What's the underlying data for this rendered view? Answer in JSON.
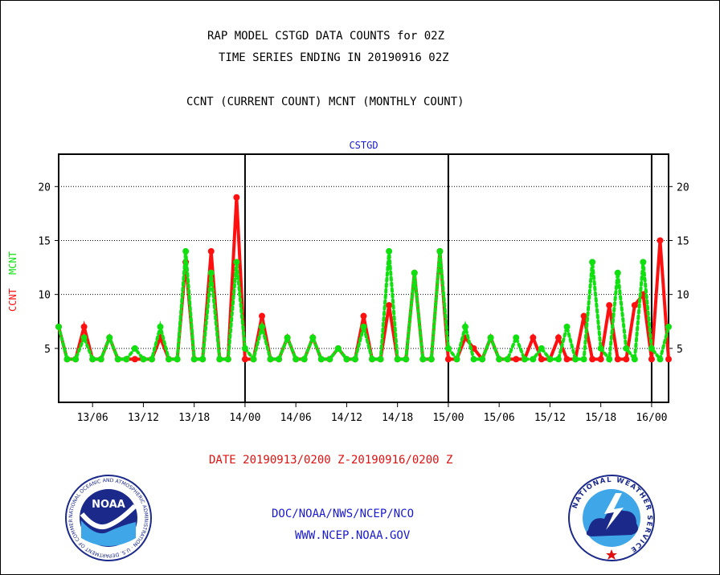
{
  "header": {
    "title_line1": "RAP MODEL CSTGD DATA COUNTS for 02Z",
    "title_line2": "TIME SERIES ENDING IN 20190916 02Z",
    "subtitle": "CCNT (CURRENT COUNT) MCNT (MONTHLY COUNT)"
  },
  "footer": {
    "date_range": "DATE 20190913/0200 Z-20190916/0200 Z",
    "org_line": "DOC/NOAA/NWS/NCEP/NCO",
    "website": "WWW.NCEP.NOAA.GOV"
  },
  "logos": {
    "noaa": {
      "text": "NOAA",
      "ring_text": "NATIONAL OCEANIC AND ATMOSPHERIC ADMINISTRATION · U.S. DEPARTMENT OF COMMERCE"
    },
    "nws": {
      "ring_text": "NATIONAL WEATHER SERVICE"
    }
  },
  "chart_data": {
    "type": "line",
    "title": "CSTGD",
    "ylabel_series": [
      "CCNT",
      "MCNT"
    ],
    "ylim": [
      0,
      23
    ],
    "yticks": [
      5,
      10,
      15,
      20
    ],
    "xlim": [
      0,
      72
    ],
    "x_tick_positions": [
      4,
      10,
      16,
      22,
      28,
      34,
      40,
      46,
      52,
      58,
      64,
      70
    ],
    "x_tick_labels": [
      "13/06",
      "13/12",
      "13/18",
      "14/00",
      "14/06",
      "14/12",
      "14/18",
      "15/00",
      "15/06",
      "15/12",
      "15/18",
      "16/00"
    ],
    "day_boundaries": [
      22,
      46,
      70
    ],
    "grid": "horizontal-dotted",
    "colors": {
      "CCNT": "#ff1010",
      "MCNT": "#10e010",
      "axis_title": "#1a1ad0"
    },
    "x": [
      0,
      1,
      2,
      3,
      4,
      5,
      6,
      7,
      8,
      9,
      10,
      11,
      12,
      13,
      14,
      15,
      16,
      17,
      18,
      19,
      20,
      21,
      22,
      23,
      24,
      25,
      26,
      27,
      28,
      29,
      30,
      31,
      32,
      33,
      34,
      35,
      36,
      37,
      38,
      39,
      40,
      41,
      42,
      43,
      44,
      45,
      46,
      47,
      48,
      49,
      50,
      51,
      52,
      53,
      54,
      55,
      56,
      57,
      58,
      59,
      60,
      61,
      62,
      63,
      64,
      65,
      66,
      67,
      68,
      69,
      70,
      71,
      72
    ],
    "series": [
      {
        "name": "CCNT",
        "values": [
          7,
          4,
          4,
          7,
          4,
          4,
          6,
          4,
          4,
          4,
          4,
          4,
          6,
          4,
          4,
          13,
          4,
          4,
          14,
          4,
          4,
          19,
          4,
          4,
          8,
          4,
          4,
          6,
          4,
          4,
          6,
          4,
          4,
          5,
          4,
          4,
          8,
          4,
          4,
          9,
          4,
          4,
          12,
          4,
          4,
          14,
          4,
          4,
          6,
          5,
          4,
          6,
          4,
          4,
          4,
          4,
          6,
          4,
          4,
          6,
          4,
          4,
          8,
          4,
          4,
          9,
          4,
          4,
          9,
          10,
          4,
          15,
          4
        ]
      },
      {
        "name": "MCNT",
        "values": [
          7,
          4,
          4,
          6,
          4,
          4,
          6,
          4,
          4,
          5,
          4,
          4,
          7,
          4,
          4,
          14,
          4,
          4,
          12,
          4,
          4,
          13,
          5,
          4,
          7,
          4,
          4,
          6,
          4,
          4,
          6,
          4,
          4,
          5,
          4,
          4,
          7,
          4,
          4,
          14,
          4,
          4,
          12,
          4,
          4,
          14,
          5,
          4,
          7,
          4,
          4,
          6,
          4,
          4,
          6,
          4,
          4,
          5,
          4,
          4,
          7,
          4,
          4,
          13,
          5,
          4,
          12,
          5,
          4,
          13,
          5,
          4,
          7
        ]
      }
    ]
  }
}
